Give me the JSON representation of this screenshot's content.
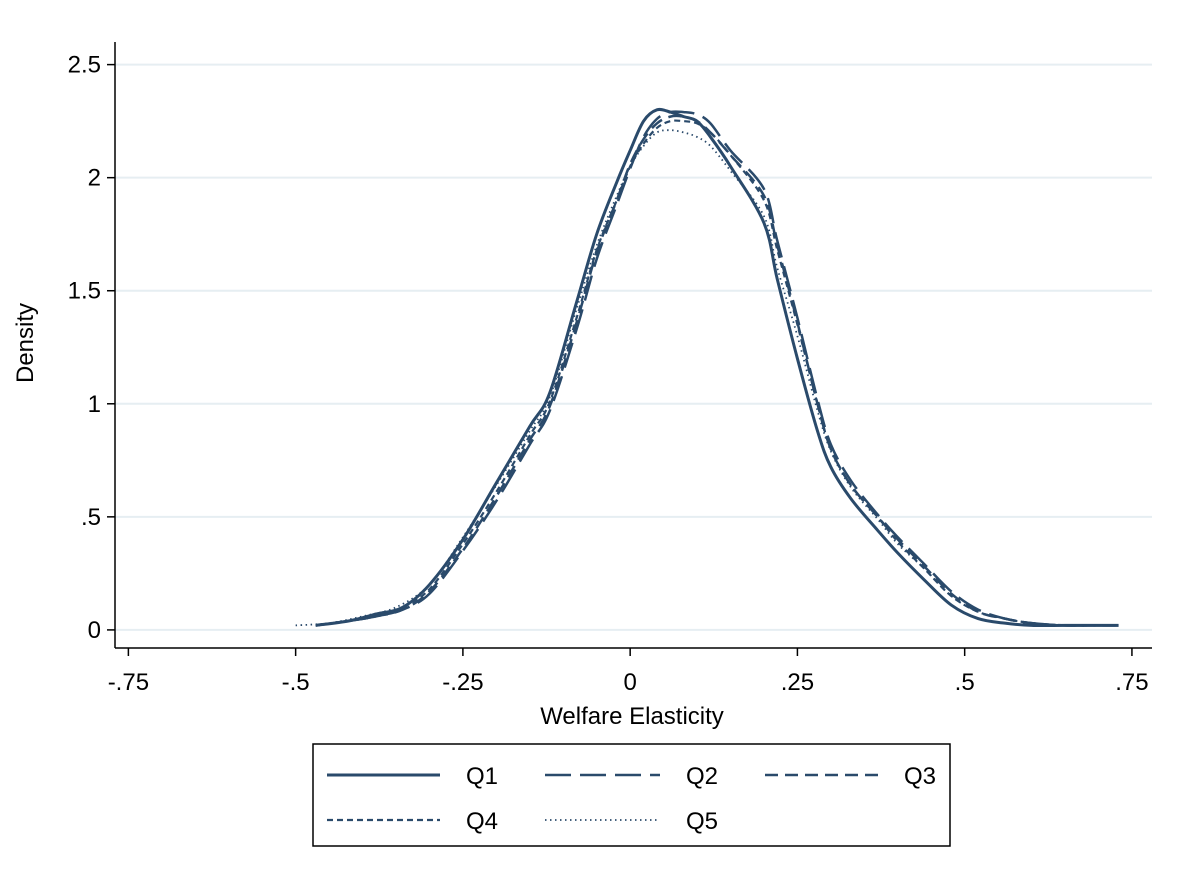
{
  "chart_data": {
    "type": "line",
    "title": "",
    "xlabel": "Welfare Elasticity",
    "ylabel": "Density",
    "xlim": [
      -0.77,
      0.78
    ],
    "ylim": [
      -0.08,
      2.6
    ],
    "xticks": [
      -0.75,
      -0.5,
      -0.25,
      0,
      0.25,
      0.5,
      0.75
    ],
    "xtick_labels": [
      "-.75",
      "-.5",
      "-.25",
      "0",
      ".25",
      ".5",
      ".75"
    ],
    "yticks": [
      0,
      0.5,
      1,
      1.5,
      2,
      2.5
    ],
    "ytick_labels": [
      "0",
      ".5",
      "1",
      "1.5",
      "2",
      "2.5"
    ],
    "grid": "horizontal",
    "legend_position": "bottom",
    "line_color": "#2a4a6b",
    "grid_color": "#e6eef2",
    "series": [
      {
        "name": "Q1",
        "x": [
          -0.47,
          -0.42,
          -0.38,
          -0.34,
          -0.3,
          -0.25,
          -0.2,
          -0.15,
          -0.12,
          -0.08,
          -0.05,
          -0.02,
          0.0,
          0.02,
          0.04,
          0.06,
          0.08,
          0.1,
          0.12,
          0.15,
          0.2,
          0.22,
          0.25,
          0.28,
          0.3,
          0.33,
          0.37,
          0.4,
          0.44,
          0.48,
          0.52,
          0.56,
          0.6,
          0.65,
          0.7,
          0.73
        ],
        "y": [
          0.02,
          0.04,
          0.07,
          0.1,
          0.2,
          0.4,
          0.65,
          0.9,
          1.05,
          1.45,
          1.75,
          1.98,
          2.12,
          2.25,
          2.3,
          2.29,
          2.27,
          2.25,
          2.18,
          2.05,
          1.8,
          1.55,
          1.2,
          0.88,
          0.72,
          0.58,
          0.44,
          0.34,
          0.22,
          0.11,
          0.05,
          0.03,
          0.02,
          0.02,
          0.02,
          0.02
        ]
      },
      {
        "name": "Q2",
        "x": [
          -0.47,
          -0.42,
          -0.38,
          -0.34,
          -0.3,
          -0.25,
          -0.2,
          -0.15,
          -0.12,
          -0.08,
          -0.05,
          -0.02,
          0.0,
          0.02,
          0.04,
          0.06,
          0.08,
          0.1,
          0.12,
          0.15,
          0.2,
          0.22,
          0.25,
          0.28,
          0.3,
          0.33,
          0.37,
          0.4,
          0.44,
          0.48,
          0.52,
          0.56,
          0.6,
          0.65,
          0.7,
          0.73
        ],
        "y": [
          0.02,
          0.04,
          0.06,
          0.09,
          0.16,
          0.35,
          0.57,
          0.82,
          0.97,
          1.33,
          1.64,
          1.88,
          2.04,
          2.18,
          2.26,
          2.29,
          2.29,
          2.28,
          2.24,
          2.12,
          1.95,
          1.72,
          1.38,
          1.02,
          0.82,
          0.66,
          0.51,
          0.41,
          0.29,
          0.17,
          0.09,
          0.05,
          0.03,
          0.02,
          0.02,
          0.02
        ]
      },
      {
        "name": "Q3",
        "x": [
          -0.47,
          -0.42,
          -0.38,
          -0.34,
          -0.3,
          -0.25,
          -0.2,
          -0.15,
          -0.12,
          -0.08,
          -0.05,
          -0.02,
          0.0,
          0.02,
          0.04,
          0.06,
          0.08,
          0.1,
          0.12,
          0.15,
          0.2,
          0.22,
          0.25,
          0.28,
          0.3,
          0.33,
          0.37,
          0.4,
          0.44,
          0.48,
          0.52,
          0.56,
          0.6,
          0.65,
          0.7,
          0.73
        ],
        "y": [
          0.02,
          0.04,
          0.06,
          0.09,
          0.17,
          0.36,
          0.59,
          0.84,
          0.99,
          1.36,
          1.67,
          1.9,
          2.06,
          2.17,
          2.24,
          2.27,
          2.27,
          2.25,
          2.2,
          2.1,
          1.92,
          1.7,
          1.36,
          1.0,
          0.8,
          0.64,
          0.5,
          0.4,
          0.28,
          0.16,
          0.08,
          0.05,
          0.03,
          0.02,
          0.02,
          0.02
        ]
      },
      {
        "name": "Q4",
        "x": [
          -0.47,
          -0.42,
          -0.38,
          -0.34,
          -0.3,
          -0.25,
          -0.2,
          -0.15,
          -0.12,
          -0.08,
          -0.05,
          -0.02,
          0.0,
          0.02,
          0.04,
          0.06,
          0.08,
          0.1,
          0.12,
          0.15,
          0.2,
          0.22,
          0.25,
          0.28,
          0.3,
          0.33,
          0.37,
          0.4,
          0.44,
          0.48,
          0.52,
          0.56,
          0.6,
          0.65,
          0.7,
          0.73
        ],
        "y": [
          0.02,
          0.04,
          0.06,
          0.1,
          0.18,
          0.38,
          0.61,
          0.86,
          1.01,
          1.38,
          1.68,
          1.9,
          2.05,
          2.15,
          2.22,
          2.25,
          2.25,
          2.24,
          2.2,
          2.1,
          1.9,
          1.68,
          1.35,
          1.0,
          0.8,
          0.64,
          0.5,
          0.39,
          0.27,
          0.15,
          0.08,
          0.05,
          0.03,
          0.02,
          0.02,
          0.02
        ]
      },
      {
        "name": "Q5",
        "x": [
          -0.5,
          -0.45,
          -0.4,
          -0.35,
          -0.3,
          -0.25,
          -0.2,
          -0.15,
          -0.12,
          -0.08,
          -0.05,
          -0.02,
          0.0,
          0.02,
          0.04,
          0.06,
          0.08,
          0.1,
          0.12,
          0.15,
          0.2,
          0.22,
          0.25,
          0.28,
          0.3,
          0.33,
          0.37,
          0.4,
          0.44,
          0.48,
          0.52,
          0.56,
          0.6,
          0.65,
          0.7,
          0.73
        ],
        "y": [
          0.02,
          0.03,
          0.06,
          0.1,
          0.2,
          0.41,
          0.64,
          0.88,
          1.03,
          1.42,
          1.7,
          1.92,
          2.05,
          2.14,
          2.2,
          2.21,
          2.2,
          2.18,
          2.14,
          2.03,
          1.83,
          1.6,
          1.3,
          0.97,
          0.79,
          0.63,
          0.49,
          0.38,
          0.27,
          0.15,
          0.08,
          0.05,
          0.03,
          0.02,
          0.02,
          0.02
        ]
      }
    ]
  }
}
